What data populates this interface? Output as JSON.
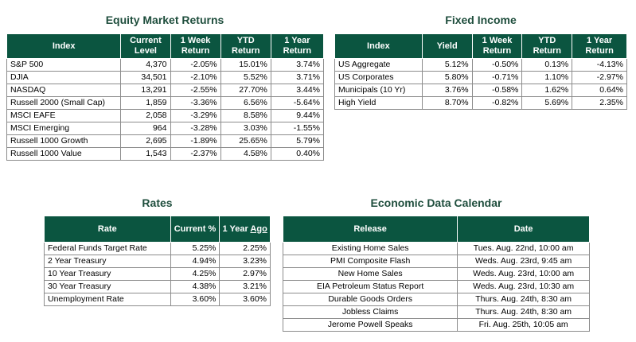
{
  "equity": {
    "title": "Equity Market Returns",
    "headers": [
      "Index",
      "Current Level",
      "1 Week Return",
      "YTD Return",
      "1 Year Return"
    ],
    "rows": [
      [
        "S&P 500",
        "4,370",
        "-2.05%",
        "15.01%",
        "3.74%"
      ],
      [
        "DJIA",
        "34,501",
        "-2.10%",
        "5.52%",
        "3.71%"
      ],
      [
        "NASDAQ",
        "13,291",
        "-2.55%",
        "27.70%",
        "3.44%"
      ],
      [
        "Russell 2000 (Small Cap)",
        "1,859",
        "-3.36%",
        "6.56%",
        "-5.64%"
      ],
      [
        "MSCI EAFE",
        "2,058",
        "-3.29%",
        "8.58%",
        "9.44%"
      ],
      [
        "MSCI Emerging",
        "964",
        "-3.28%",
        "3.03%",
        "-1.55%"
      ],
      [
        "Russell 1000 Growth",
        "2,695",
        "-1.89%",
        "25.65%",
        "5.79%"
      ],
      [
        "Russell 1000 Value",
        "1,543",
        "-2.37%",
        "4.58%",
        "0.40%"
      ]
    ]
  },
  "fixed": {
    "title": "Fixed Income",
    "headers": [
      "Index",
      "Yield",
      "1 Week Return",
      "YTD Return",
      "1 Year Return"
    ],
    "rows": [
      [
        "US Aggregate",
        "5.12%",
        "-0.50%",
        "0.13%",
        "-4.13%"
      ],
      [
        "US Corporates",
        "5.80%",
        "-0.71%",
        "1.10%",
        "-2.97%"
      ],
      [
        "Municipals (10 Yr)",
        "3.76%",
        "-0.58%",
        "1.62%",
        "0.64%"
      ],
      [
        "High Yield",
        "8.70%",
        "-0.82%",
        "5.69%",
        "2.35%"
      ]
    ]
  },
  "rates": {
    "title": "Rates",
    "headers": [
      "Rate",
      "Current %",
      "1 Year Ago"
    ],
    "rows": [
      [
        "Federal Funds Target Rate",
        "5.25%",
        "2.25%"
      ],
      [
        "2 Year Treasury",
        "4.94%",
        "3.23%"
      ],
      [
        "10 Year Treasury",
        "4.25%",
        "2.97%"
      ],
      [
        "30 Year Treasury",
        "4.38%",
        "3.21%"
      ],
      [
        "Unemployment Rate",
        "3.60%",
        "3.60%"
      ]
    ]
  },
  "calendar": {
    "title": "Economic Data Calendar",
    "headers": [
      "Release",
      "Date"
    ],
    "rows": [
      [
        "Existing Home Sales",
        "Tues. Aug. 22nd, 10:00 am"
      ],
      [
        "PMI Composite Flash",
        "Weds. Aug. 23rd, 9:45 am"
      ],
      [
        "New Home Sales",
        "Weds. Aug. 23rd, 10:00 am"
      ],
      [
        "EIA Petroleum Status Report",
        "Weds. Aug. 23rd, 10:30 am"
      ],
      [
        "Durable Goods Orders",
        "Thurs. Aug. 24th, 8:30 am"
      ],
      [
        "Jobless Claims",
        "Thurs. Aug. 24th, 8:30 am"
      ],
      [
        "Jerome Powell Speaks",
        "Fri. Aug. 25th, 10:05 am"
      ]
    ]
  }
}
